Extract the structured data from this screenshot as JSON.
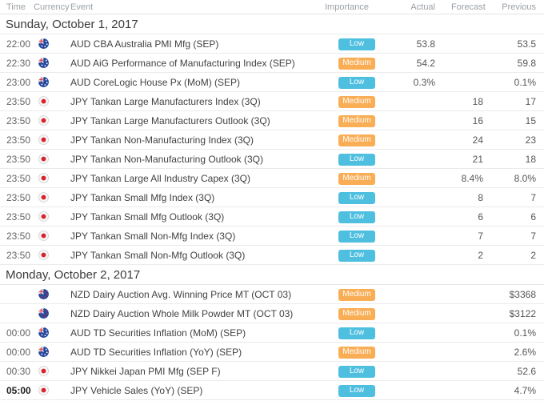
{
  "table": {
    "columns": {
      "time": "Time",
      "currency": "Currency",
      "event": "Event",
      "importance": "Importance",
      "actual": "Actual",
      "forecast": "Forecast",
      "previous": "Previous"
    }
  },
  "importance_colors": {
    "Low": "#4fbfe0",
    "Medium": "#f9ad55"
  },
  "flag_icons": {
    "AUD": "aud-flag-icon",
    "JPY": "jpy-flag-icon",
    "NZD": "nzd-flag-icon"
  },
  "sections": [
    {
      "date": "Sunday, October 1, 2017",
      "rows": [
        {
          "time": "22:00",
          "currency": "AUD",
          "event": "AUD CBA Australia PMI Mfg (SEP)",
          "importance": "Low",
          "actual": "53.8",
          "forecast": "",
          "previous": "53.5",
          "time_bold": false
        },
        {
          "time": "22:30",
          "currency": "AUD",
          "event": "AUD AiG Performance of Manufacturing Index (SEP)",
          "importance": "Medium",
          "actual": "54.2",
          "forecast": "",
          "previous": "59.8",
          "time_bold": false
        },
        {
          "time": "23:00",
          "currency": "AUD",
          "event": "AUD CoreLogic House Px (MoM) (SEP)",
          "importance": "Low",
          "actual": "0.3%",
          "forecast": "",
          "previous": "0.1%",
          "time_bold": false
        },
        {
          "time": "23:50",
          "currency": "JPY",
          "event": "JPY Tankan Large Manufacturers Index (3Q)",
          "importance": "Medium",
          "actual": "",
          "forecast": "18",
          "previous": "17",
          "time_bold": false
        },
        {
          "time": "23:50",
          "currency": "JPY",
          "event": "JPY Tankan Large Manufacturers Outlook (3Q)",
          "importance": "Medium",
          "actual": "",
          "forecast": "16",
          "previous": "15",
          "time_bold": false
        },
        {
          "time": "23:50",
          "currency": "JPY",
          "event": "JPY Tankan Non-Manufacturing Index (3Q)",
          "importance": "Medium",
          "actual": "",
          "forecast": "24",
          "previous": "23",
          "time_bold": false
        },
        {
          "time": "23:50",
          "currency": "JPY",
          "event": "JPY Tankan Non-Manufacturing Outlook (3Q)",
          "importance": "Low",
          "actual": "",
          "forecast": "21",
          "previous": "18",
          "time_bold": false
        },
        {
          "time": "23:50",
          "currency": "JPY",
          "event": "JPY Tankan Large All Industry Capex (3Q)",
          "importance": "Medium",
          "actual": "",
          "forecast": "8.4%",
          "previous": "8.0%",
          "time_bold": false
        },
        {
          "time": "23:50",
          "currency": "JPY",
          "event": "JPY Tankan Small Mfg Index (3Q)",
          "importance": "Low",
          "actual": "",
          "forecast": "8",
          "previous": "7",
          "time_bold": false
        },
        {
          "time": "23:50",
          "currency": "JPY",
          "event": "JPY Tankan Small Mfg Outlook (3Q)",
          "importance": "Low",
          "actual": "",
          "forecast": "6",
          "previous": "6",
          "time_bold": false
        },
        {
          "time": "23:50",
          "currency": "JPY",
          "event": "JPY Tankan Small Non-Mfg Index (3Q)",
          "importance": "Low",
          "actual": "",
          "forecast": "7",
          "previous": "7",
          "time_bold": false
        },
        {
          "time": "23:50",
          "currency": "JPY",
          "event": "JPY Tankan Small Non-Mfg Outlook (3Q)",
          "importance": "Low",
          "actual": "",
          "forecast": "2",
          "previous": "2",
          "time_bold": false
        }
      ]
    },
    {
      "date": "Monday, October 2, 2017",
      "rows": [
        {
          "time": "",
          "currency": "NZD",
          "event": "NZD Dairy Auction Avg. Winning Price MT (OCT 03)",
          "importance": "Medium",
          "actual": "",
          "forecast": "",
          "previous": "$3368",
          "time_bold": false
        },
        {
          "time": "",
          "currency": "NZD",
          "event": "NZD Dairy Auction Whole Milk Powder MT (OCT 03)",
          "importance": "Medium",
          "actual": "",
          "forecast": "",
          "previous": "$3122",
          "time_bold": false
        },
        {
          "time": "00:00",
          "currency": "AUD",
          "event": "AUD TD Securities Inflation (MoM) (SEP)",
          "importance": "Low",
          "actual": "",
          "forecast": "",
          "previous": "0.1%",
          "time_bold": false
        },
        {
          "time": "00:00",
          "currency": "AUD",
          "event": "AUD TD Securities Inflation (YoY) (SEP)",
          "importance": "Medium",
          "actual": "",
          "forecast": "",
          "previous": "2.6%",
          "time_bold": false
        },
        {
          "time": "00:30",
          "currency": "JPY",
          "event": "JPY Nikkei Japan PMI Mfg (SEP F)",
          "importance": "Low",
          "actual": "",
          "forecast": "",
          "previous": "52.6",
          "time_bold": false
        },
        {
          "time": "05:00",
          "currency": "JPY",
          "event": "JPY Vehicle Sales (YoY) (SEP)",
          "importance": "Low",
          "actual": "",
          "forecast": "",
          "previous": "4.7%",
          "time_bold": true
        }
      ]
    }
  ]
}
